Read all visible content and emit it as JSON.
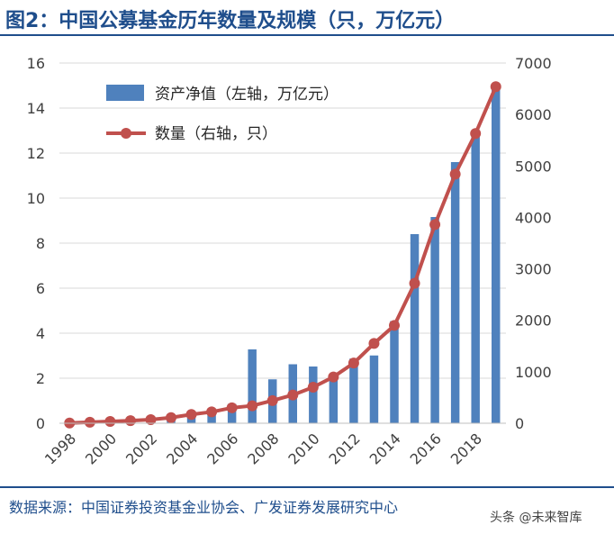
{
  "title": "图2：中国公募基金历年数量及规模（只，万亿元）",
  "source": "数据来源：中国证券投资基金业协会、广发证券发展研究中心",
  "watermark": "头条 @未来智库",
  "colors": {
    "bar": "#4f81bd",
    "line": "#c0504d",
    "title": "#1f4e8c"
  },
  "chart_data": {
    "type": "bar+line",
    "x": [
      1998,
      1999,
      2000,
      2001,
      2002,
      2003,
      2004,
      2005,
      2006,
      2007,
      2008,
      2009,
      2010,
      2011,
      2012,
      2013,
      2014,
      2015,
      2016,
      2017,
      2018,
      2019
    ],
    "x_tick_labels": [
      "1998",
      "2000",
      "2002",
      "2004",
      "2006",
      "2008",
      "2010",
      "2012",
      "2014",
      "2016",
      "2018"
    ],
    "series": [
      {
        "name": "资产净值（左轴，万亿元）",
        "type": "bar",
        "axis": "left",
        "values": [
          0.01,
          0.05,
          0.08,
          0.08,
          0.13,
          0.16,
          0.33,
          0.47,
          0.86,
          3.28,
          1.95,
          2.62,
          2.52,
          2.19,
          2.87,
          3.01,
          4.54,
          8.4,
          9.16,
          11.6,
          13.0,
          14.8
        ]
      },
      {
        "name": "数量（右轴，只）",
        "type": "line",
        "axis": "right",
        "values": [
          5,
          20,
          35,
          50,
          70,
          110,
          170,
          220,
          300,
          340,
          440,
          550,
          700,
          900,
          1170,
          1550,
          1900,
          2720,
          3860,
          4840,
          5630,
          6540
        ]
      }
    ],
    "left_axis": {
      "min": 0,
      "max": 16,
      "ticks": [
        0,
        2,
        4,
        6,
        8,
        10,
        12,
        14,
        16
      ]
    },
    "right_axis": {
      "min": 0,
      "max": 7000,
      "ticks": [
        0,
        1000,
        2000,
        3000,
        4000,
        5000,
        6000,
        7000
      ]
    },
    "legend_position": "top-left",
    "grid": "horizontal"
  }
}
